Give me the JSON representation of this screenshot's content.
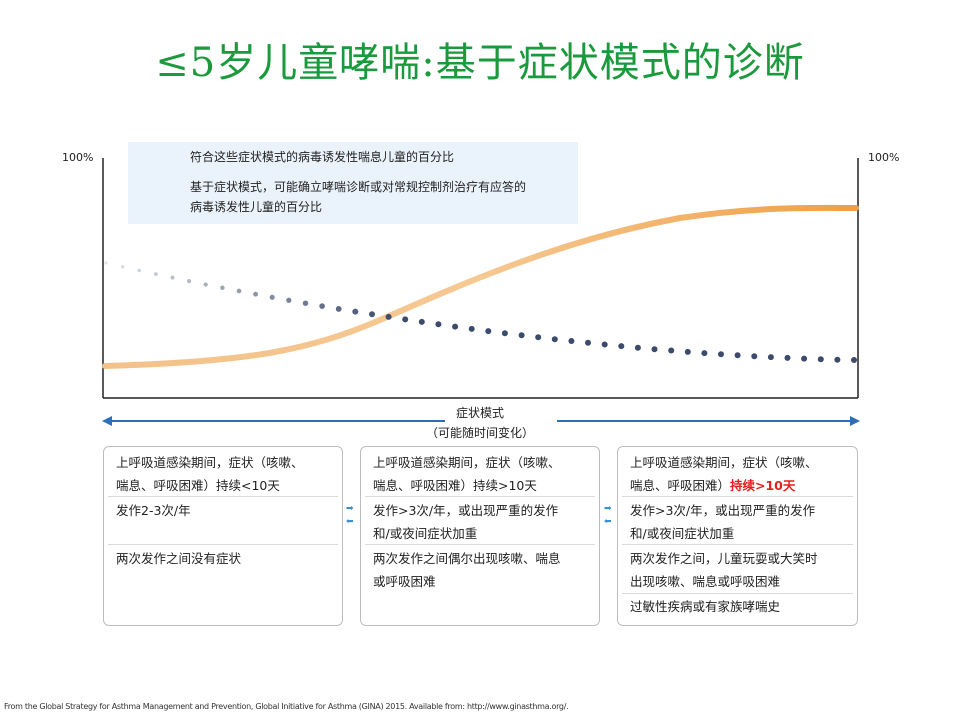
{
  "title": "≤5岁儿童哮喘:基于症状模式的诊断",
  "chart": {
    "y_left_label": "100%",
    "y_right_label": "100%",
    "legend": [
      {
        "text": "符合这些症状模式的病毒诱发性喘息儿童的百分比",
        "style": "dotted",
        "color": "#3b4b6b"
      },
      {
        "line1": "基于症状模式，可能确立哮喘诊断或对常规控制剂治疗有应答的",
        "line2": "病毒诱发性儿童的百分比",
        "style": "solid",
        "color": "#f0a44a"
      }
    ],
    "xaxis_label_line1": "症状模式",
    "xaxis_label_line2": "（可能随时间变化）",
    "colors": {
      "dotted": "#3b4b6b",
      "solid": "#f0a44a",
      "arrow": "#2a6fb8",
      "title": "#1a9a3c"
    }
  },
  "columns": [
    {
      "rows": [
        {
          "line1": "上呼吸道感染期间，症状（咳嗽、",
          "line2": "喘息、呼吸困难）持续<10天"
        },
        {
          "line1": "发作2-3次/年",
          "line2": ""
        },
        {
          "line1": "两次发作之间没有症状",
          "line2": ""
        }
      ]
    },
    {
      "rows": [
        {
          "line1": "上呼吸道感染期间，症状（咳嗽、",
          "line2": "喘息、呼吸困难）持续>10天"
        },
        {
          "line1": "发作>3次/年，或出现严重的发作",
          "line2": "和/或夜间症状加重"
        },
        {
          "line1": "两次发作之间偶尔出现咳嗽、喘息",
          "line2": "或呼吸困难"
        }
      ]
    },
    {
      "rows": [
        {
          "line1": "上呼吸道感染期间，症状（咳嗽、",
          "line2a": "喘息、呼吸困难）",
          "line2b": "持续>10天"
        },
        {
          "line1": "发作>3次/年，或出现严重的发作",
          "line2": "和/或夜间症状加重"
        },
        {
          "line1": "两次发作之间，儿童玩耍或大笑时",
          "line2": "出现咳嗽、喘息或呼吸困难"
        },
        {
          "line1": "过敏性疾病或有家族哮喘史",
          "line2": ""
        }
      ]
    }
  ],
  "footer": "From the Global Strategy for Asthma Management and Prevention, Global Initiative for Asthma (GINA) 2015. Available from: http://www.ginasthma.org/."
}
